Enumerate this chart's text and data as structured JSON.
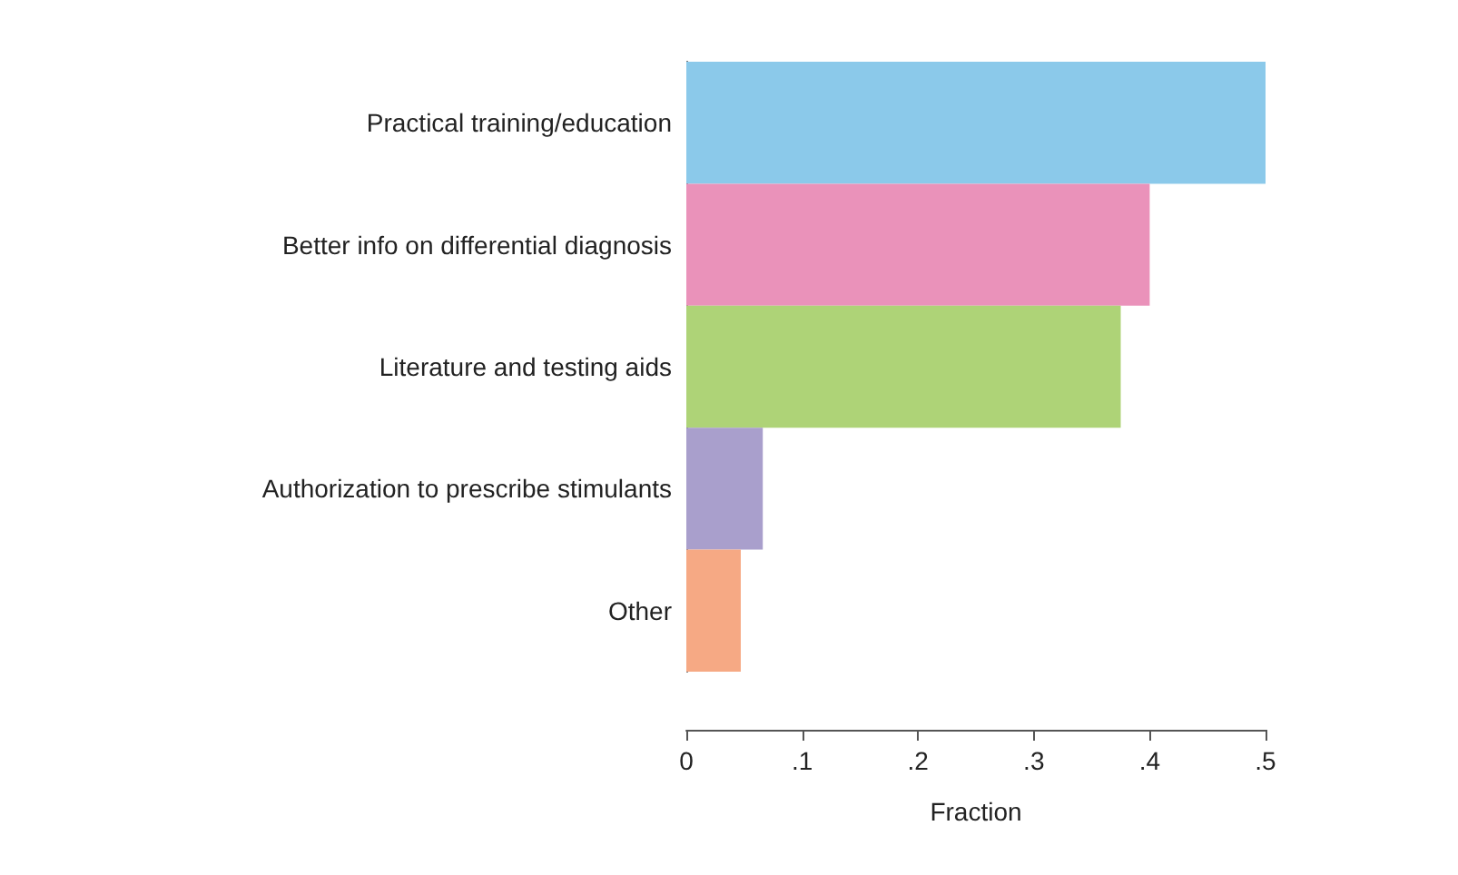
{
  "chart_data": {
    "type": "bar",
    "orientation": "horizontal",
    "xlabel": "Fraction",
    "categories": [
      "Practical training/education",
      "Better info on differential diagnosis",
      "Literature and testing aids",
      "Authorization to prescribe stimulants",
      "Other"
    ],
    "values": [
      0.5,
      0.4,
      0.375,
      0.066,
      0.047
    ],
    "colors": [
      "#8bc9ea",
      "#ea92ba",
      "#aed377",
      "#a99fcc",
      "#f6a984"
    ],
    "xlim": [
      0,
      0.5
    ],
    "xticks": [
      {
        "value": 0,
        "label": "0"
      },
      {
        "value": 0.1,
        "label": ".1"
      },
      {
        "value": 0.2,
        "label": ".2"
      },
      {
        "value": 0.3,
        "label": ".3"
      },
      {
        "value": 0.4,
        "label": ".4"
      },
      {
        "value": 0.5,
        "label": ".5"
      }
    ],
    "grid": false
  }
}
